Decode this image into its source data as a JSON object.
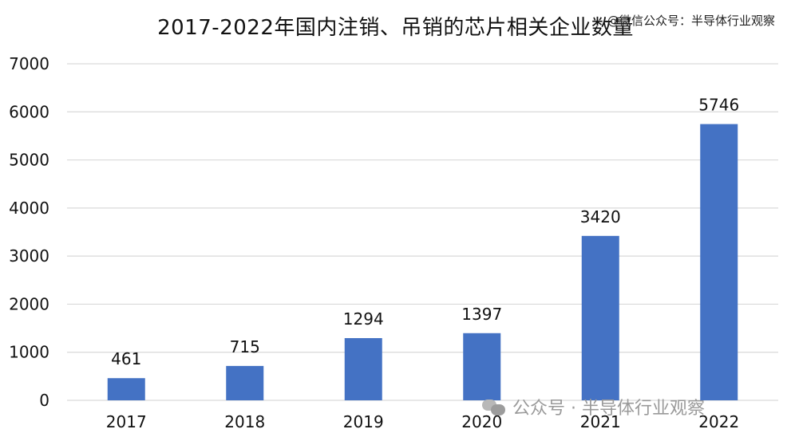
{
  "watermark_top": "@微信公众号：半导体行业观察",
  "watermark_bottom": "公众号 · 半导体行业观察",
  "chart_data": {
    "type": "bar",
    "title": "2017-2022年国内注销、吊销的芯片相关企业数量",
    "categories": [
      "2017",
      "2018",
      "2019",
      "2020",
      "2021",
      "2022"
    ],
    "values": [
      461,
      715,
      1294,
      1397,
      3420,
      5746
    ],
    "data_labels": [
      "461",
      "715",
      "1294",
      "1397",
      "3420",
      "5746"
    ],
    "ylim": [
      0,
      7000
    ],
    "yticks": [
      0,
      1000,
      2000,
      3000,
      4000,
      5000,
      6000,
      7000
    ],
    "grid": true,
    "legend": "none",
    "bar_color": "#4472C4",
    "xlabel": "",
    "ylabel": ""
  }
}
